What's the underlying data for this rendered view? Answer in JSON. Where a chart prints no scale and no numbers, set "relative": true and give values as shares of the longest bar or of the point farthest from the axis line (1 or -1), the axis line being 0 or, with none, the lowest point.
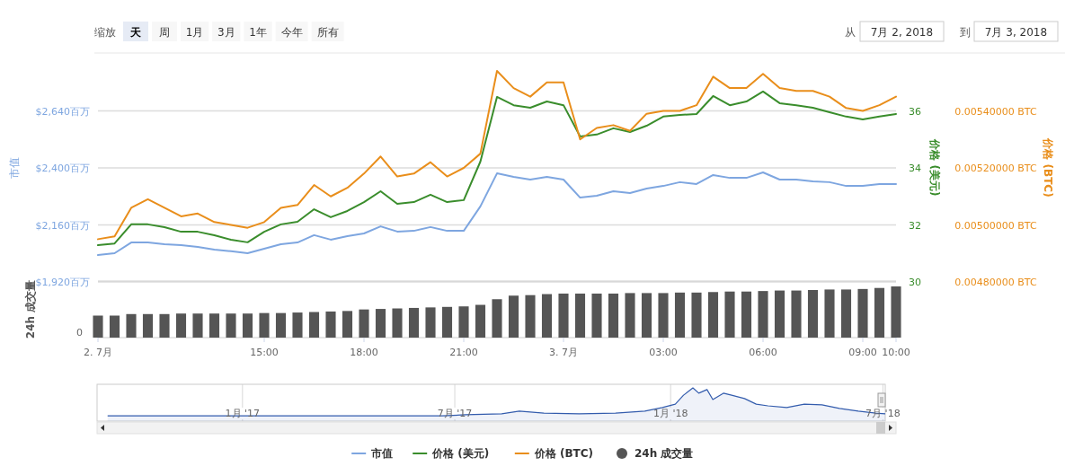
{
  "chart_data": [
    {
      "type": "line",
      "annotations": [
        "缩放",
        "天",
        "周",
        "1月",
        "3月",
        "1年",
        "今年",
        "所有",
        "从",
        "7月 2, 2018",
        "到",
        "7月 3, 2018"
      ],
      "x": [
        "2018-07-02T10:00",
        "2018-07-02T10:30",
        "2018-07-02T11:00",
        "2018-07-02T11:30",
        "2018-07-02T12:00",
        "2018-07-02T12:30",
        "2018-07-02T13:00",
        "2018-07-02T13:30",
        "2018-07-02T14:00",
        "2018-07-02T14:30",
        "2018-07-02T15:00",
        "2018-07-02T15:30",
        "2018-07-02T16:00",
        "2018-07-02T16:30",
        "2018-07-02T17:00",
        "2018-07-02T17:30",
        "2018-07-02T18:00",
        "2018-07-02T18:30",
        "2018-07-02T19:00",
        "2018-07-02T19:30",
        "2018-07-02T20:00",
        "2018-07-02T20:30",
        "2018-07-02T21:00",
        "2018-07-02T21:30",
        "2018-07-02T22:00",
        "2018-07-02T22:30",
        "2018-07-02T23:00",
        "2018-07-02T23:30",
        "2018-07-03T00:00",
        "2018-07-03T00:30",
        "2018-07-03T01:00",
        "2018-07-03T01:30",
        "2018-07-03T02:00",
        "2018-07-03T02:30",
        "2018-07-03T03:00",
        "2018-07-03T03:30",
        "2018-07-03T04:00",
        "2018-07-03T04:30",
        "2018-07-03T05:00",
        "2018-07-03T05:30",
        "2018-07-03T06:00",
        "2018-07-03T06:30",
        "2018-07-03T07:00",
        "2018-07-03T07:30",
        "2018-07-03T08:00",
        "2018-07-03T08:30",
        "2018-07-03T09:00",
        "2018-07-03T09:30",
        "2018-07-03T10:00"
      ],
      "xlim": [
        "2018-07-02T10:00",
        "2018-07-03T10:00"
      ],
      "tick_labels": "y",
      "ylabel": "市值",
      "y2label": "价格 (美元)",
      "y3label": "价格 (BTC)",
      "ylim": [
        1920,
        2880
      ],
      "yticks": [
        {
          "value": 1920,
          "label": "$1,920百万"
        },
        {
          "value": 2160,
          "label": "$2,160百万"
        },
        {
          "value": 2400,
          "label": "$2,400百万"
        },
        {
          "value": 2640,
          "label": "$2,640百万"
        }
      ],
      "y2lim": [
        30,
        38
      ],
      "y2ticks": [
        30,
        32,
        34,
        36
      ],
      "y3lim": [
        0.0048,
        0.0056
      ],
      "y3ticks": [
        {
          "value": 0.0048,
          "label": "0.00480000 BTC"
        },
        {
          "value": 0.005,
          "label": "0.00500000 BTC"
        },
        {
          "value": 0.0052,
          "label": "0.00520000 BTC"
        },
        {
          "value": 0.0054,
          "label": "0.00540000 BTC"
        }
      ],
      "grid": "y",
      "legend": "bottom",
      "series": [
        {
          "name": "市值",
          "color": "#7ea6e0",
          "values": [
            2033,
            2041,
            2086,
            2086,
            2079,
            2075,
            2067,
            2056,
            2049,
            2041,
            2060,
            2079,
            2086,
            2117,
            2098,
            2113,
            2124,
            2154,
            2132,
            2135,
            2151,
            2135,
            2135,
            2238,
            2377,
            2362,
            2351,
            2362,
            2351,
            2275,
            2283,
            2302,
            2294,
            2313,
            2324,
            2340,
            2332,
            2370,
            2358,
            2358,
            2381,
            2351,
            2351,
            2343,
            2340,
            2324,
            2324,
            2332,
            2332
          ]
        },
        {
          "name": "价格 (美元)",
          "color": "#3a8d2c",
          "axis": "y2",
          "values": [
            31.29,
            31.35,
            32.02,
            32.02,
            31.92,
            31.76,
            31.76,
            31.64,
            31.48,
            31.39,
            31.76,
            32.02,
            32.11,
            32.55,
            32.27,
            32.49,
            32.8,
            33.18,
            32.74,
            32.8,
            33.06,
            32.8,
            32.87,
            34.22,
            36.49,
            36.2,
            36.11,
            36.33,
            36.2,
            35.1,
            35.17,
            35.39,
            35.26,
            35.48,
            35.8,
            35.86,
            35.89,
            36.52,
            36.2,
            36.33,
            36.68,
            36.27,
            36.2,
            36.11,
            35.95,
            35.8,
            35.7,
            35.8,
            35.89
          ]
        },
        {
          "name": "价格 (BTC)",
          "color": "#e98e1b",
          "axis": "y3",
          "values": [
            0.00495,
            0.00496,
            0.00506,
            0.00509,
            0.00506,
            0.00503,
            0.00504,
            0.00501,
            0.005,
            0.00499,
            0.00501,
            0.00506,
            0.00507,
            0.00514,
            0.0051,
            0.00513,
            0.00518,
            0.00524,
            0.00517,
            0.00518,
            0.00522,
            0.00517,
            0.0052,
            0.00525,
            0.00554,
            0.00548,
            0.00545,
            0.0055,
            0.0055,
            0.0053,
            0.00534,
            0.00535,
            0.00533,
            0.00539,
            0.0054,
            0.0054,
            0.00542,
            0.00552,
            0.00548,
            0.00548,
            0.00553,
            0.00548,
            0.00547,
            0.00547,
            0.00545,
            0.00541,
            0.0054,
            0.00542,
            0.00545
          ]
        }
      ]
    },
    {
      "type": "bar",
      "relative": true,
      "ylabel": "24h 成交量",
      "annotations": [
        "0"
      ],
      "legend": "bottom",
      "x": [
        "2018-07-02T10:00",
        "2018-07-02T10:30",
        "2018-07-02T11:00",
        "2018-07-02T11:30",
        "2018-07-02T12:00",
        "2018-07-02T12:30",
        "2018-07-02T13:00",
        "2018-07-02T13:30",
        "2018-07-02T14:00",
        "2018-07-02T14:30",
        "2018-07-02T15:00",
        "2018-07-02T15:30",
        "2018-07-02T16:00",
        "2018-07-02T16:30",
        "2018-07-02T17:00",
        "2018-07-02T17:30",
        "2018-07-02T18:00",
        "2018-07-02T18:30",
        "2018-07-02T19:00",
        "2018-07-02T19:30",
        "2018-07-02T20:00",
        "2018-07-02T20:30",
        "2018-07-02T21:00",
        "2018-07-02T21:30",
        "2018-07-02T22:00",
        "2018-07-02T22:30",
        "2018-07-02T23:00",
        "2018-07-02T23:30",
        "2018-07-03T00:00",
        "2018-07-03T00:30",
        "2018-07-03T01:00",
        "2018-07-03T01:30",
        "2018-07-03T02:00",
        "2018-07-03T02:30",
        "2018-07-03T03:00",
        "2018-07-03T03:30",
        "2018-07-03T04:00",
        "2018-07-03T04:30",
        "2018-07-03T05:00",
        "2018-07-03T05:30",
        "2018-07-03T06:00",
        "2018-07-03T06:30",
        "2018-07-03T07:00",
        "2018-07-03T07:30",
        "2018-07-03T08:00",
        "2018-07-03T08:30",
        "2018-07-03T09:00",
        "2018-07-03T09:30",
        "2018-07-03T10:00"
      ],
      "xlim": [
        "2018-07-02T10:00",
        "2018-07-03T10:00"
      ],
      "xticks": [
        {
          "value": "2018-07-02T10:00",
          "label": "2. 7月"
        },
        {
          "value": "2018-07-02T15:00",
          "label": "15:00"
        },
        {
          "value": "2018-07-02T18:00",
          "label": "18:00"
        },
        {
          "value": "2018-07-02T21:00",
          "label": "21:00"
        },
        {
          "value": "2018-07-03T00:00",
          "label": "3. 7月"
        },
        {
          "value": "2018-07-03T03:00",
          "label": "03:00"
        },
        {
          "value": "2018-07-03T06:00",
          "label": "06:00"
        },
        {
          "value": "2018-07-03T09:00",
          "label": "09:00"
        },
        {
          "value": "2018-07-03T10:00",
          "label": "10:00"
        }
      ],
      "series": [
        {
          "name": "24h 成交量",
          "color": "#555555",
          "values": [
            0.43,
            0.43,
            0.46,
            0.46,
            0.46,
            0.47,
            0.47,
            0.47,
            0.47,
            0.47,
            0.48,
            0.48,
            0.49,
            0.5,
            0.51,
            0.52,
            0.55,
            0.56,
            0.57,
            0.58,
            0.59,
            0.6,
            0.61,
            0.64,
            0.75,
            0.82,
            0.83,
            0.85,
            0.86,
            0.86,
            0.86,
            0.86,
            0.87,
            0.87,
            0.87,
            0.88,
            0.88,
            0.89,
            0.9,
            0.9,
            0.91,
            0.92,
            0.92,
            0.93,
            0.94,
            0.94,
            0.95,
            0.97,
            1
          ]
        }
      ]
    },
    {
      "type": "area",
      "relative": true,
      "grid": "x",
      "x": [
        "2016-09-08",
        "2017-06-20",
        "2017-07-10",
        "2017-08-10",
        "2017-08-25",
        "2017-09-15",
        "2017-10-15",
        "2017-11-15",
        "2017-12-10",
        "2017-12-25",
        "2018-01-05",
        "2018-01-12",
        "2018-01-20",
        "2018-01-25",
        "2018-02-01",
        "2018-02-06",
        "2018-02-15",
        "2018-02-22",
        "2018-03-05",
        "2018-03-15",
        "2018-03-25",
        "2018-04-10",
        "2018-04-25",
        "2018-05-10",
        "2018-05-25",
        "2018-06-10",
        "2018-06-25",
        "2018-07-03"
      ],
      "xlim": [
        "2016-08-30",
        "2018-07-03"
      ],
      "xticks": [
        {
          "value": "2017-01-01",
          "label": "1月 '17"
        },
        {
          "value": "2017-07-01",
          "label": "7月 '17"
        },
        {
          "value": "2018-01-01",
          "label": "1月 '18"
        },
        {
          "value": "2018-07-01",
          "label": "7月 '18"
        }
      ],
      "series": [
        {
          "color": "#335cad",
          "values": [
            0.16,
            0.16,
            0.19,
            0.22,
            0.3,
            0.24,
            0.22,
            0.24,
            0.3,
            0.41,
            0.51,
            0.78,
            1,
            0.84,
            0.95,
            0.65,
            0.84,
            0.78,
            0.68,
            0.51,
            0.46,
            0.41,
            0.51,
            0.49,
            0.38,
            0.3,
            0.24,
            0.22
          ]
        }
      ]
    }
  ]
}
